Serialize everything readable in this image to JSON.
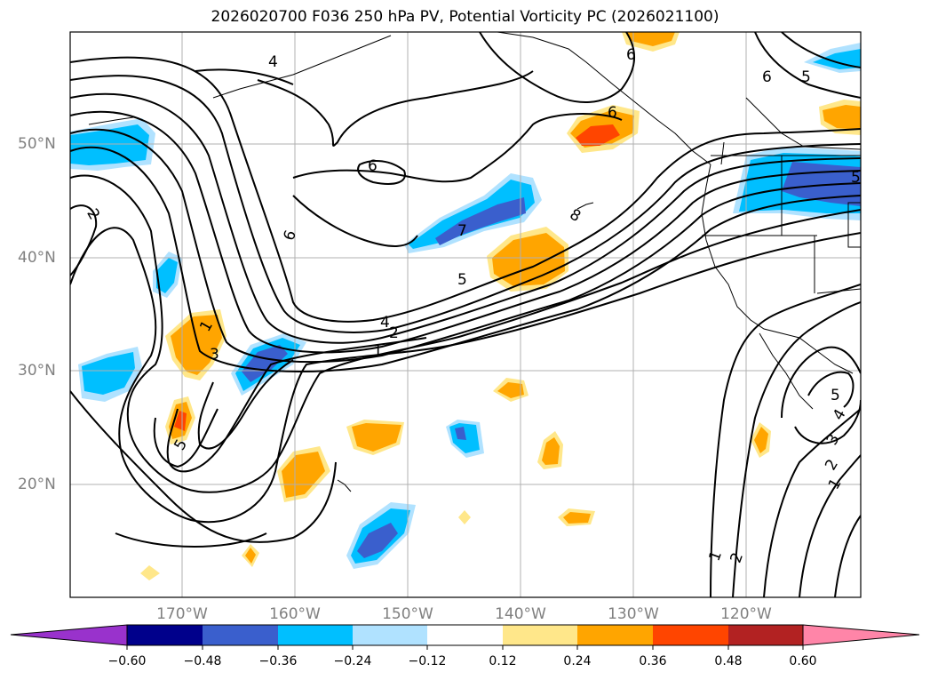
{
  "title": "2026020700 F036 250 hPa PV, Potential Vorticity PC (2026021100)",
  "lat_labels": [
    "50°N",
    "40°N",
    "30°N",
    "20°N"
  ],
  "lon_labels": [
    "170°W",
    "160°W",
    "150°W",
    "140°W",
    "130°W",
    "120°W"
  ],
  "colorbar": {
    "ticks": [
      "−0.60",
      "−0.48",
      "−0.36",
      "−0.24",
      "−0.12",
      "0.12",
      "0.24",
      "0.36",
      "0.48",
      "0.60"
    ],
    "colors": [
      "#9932cc",
      "#00008b",
      "#3a5fcd",
      "#00bfff",
      "#b0e2ff",
      "#ffffff",
      "#ffe78a",
      "#ffa500",
      "#ff4500",
      "#b22222",
      "#ff85a8"
    ]
  },
  "contour_labels": [
    "2",
    "4",
    "6",
    "6",
    "5",
    "6",
    "6",
    "7",
    "8",
    "5",
    "4",
    "2",
    "1",
    "1",
    "3",
    "5",
    "1",
    "2",
    "1",
    "2",
    "3",
    "4",
    "5",
    "6",
    "5"
  ]
}
